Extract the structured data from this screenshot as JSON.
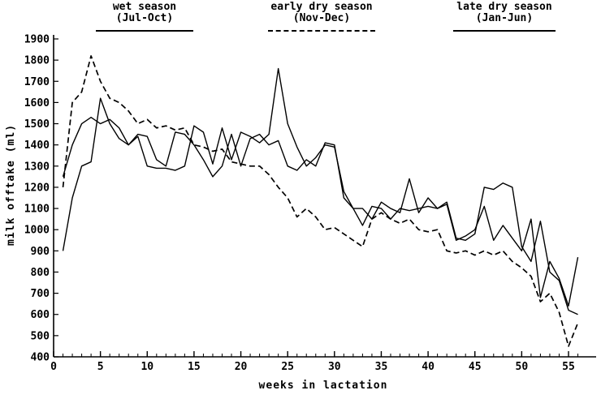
{
  "chart": {
    "xlabel": "weeks in lactation",
    "ylabel": "milk offtake (ml)",
    "legend": [
      {
        "label_line1": "wet season",
        "label_line2": "(Jul-Oct)",
        "style": "solid"
      },
      {
        "label_line1": "early dry season",
        "label_line2": "(Nov-Dec)",
        "style": "dashed"
      },
      {
        "label_line1": "late dry season",
        "label_line2": "(Jan-Jun)",
        "style": "solid"
      }
    ],
    "colors": {
      "line": "#000000",
      "background": "#ffffff"
    }
  },
  "chart_data": {
    "type": "line",
    "title": "",
    "xlabel": "weeks in lactation",
    "ylabel": "milk offtake (ml)",
    "xlim": [
      0,
      56
    ],
    "ylim": [
      400,
      1900
    ],
    "x_ticks": [
      0,
      5,
      10,
      15,
      20,
      25,
      30,
      35,
      40,
      45,
      50,
      55
    ],
    "y_ticks": [
      400,
      500,
      600,
      700,
      800,
      900,
      1000,
      1100,
      1200,
      1300,
      1400,
      1500,
      1600,
      1700,
      1800,
      1900
    ],
    "x_minor_step": 1,
    "grid": false,
    "legend_position": "top",
    "x": [
      1,
      2,
      3,
      4,
      5,
      6,
      7,
      8,
      9,
      10,
      11,
      12,
      13,
      14,
      15,
      16,
      17,
      18,
      19,
      20,
      21,
      22,
      23,
      24,
      25,
      26,
      27,
      28,
      29,
      30,
      31,
      32,
      33,
      34,
      35,
      36,
      37,
      38,
      39,
      40,
      41,
      42,
      43,
      44,
      45,
      46,
      47,
      48,
      49,
      50,
      51,
      52,
      53,
      54,
      55,
      56
    ],
    "series": [
      {
        "name": "wet season (Jul-Oct)",
        "style": "solid",
        "values": [
          900,
          1150,
          1300,
          1320,
          1620,
          1500,
          1430,
          1400,
          1440,
          1300,
          1290,
          1290,
          1280,
          1300,
          1490,
          1460,
          1310,
          1480,
          1330,
          1460,
          1440,
          1410,
          1450,
          1760,
          1500,
          1390,
          1300,
          1340,
          1400,
          1390,
          1180,
          1100,
          1020,
          1110,
          1100,
          1050,
          1100,
          1090,
          1100,
          1110,
          1100,
          1120,
          950,
          970,
          1000,
          1110,
          950,
          1020,
          960,
          900,
          1050,
          680,
          850,
          770,
          640,
          870
        ]
      },
      {
        "name": "early dry season (Nov-Dec)",
        "style": "dashed",
        "values": [
          1200,
          1600,
          1650,
          1820,
          1700,
          1620,
          1600,
          1560,
          1500,
          1520,
          1480,
          1490,
          1470,
          1480,
          1400,
          1390,
          1370,
          1380,
          1320,
          1310,
          1300,
          1300,
          1260,
          1200,
          1150,
          1060,
          1100,
          1060,
          1000,
          1010,
          980,
          950,
          920,
          1050,
          1080,
          1050,
          1030,
          1050,
          1000,
          990,
          1000,
          900,
          890,
          900,
          880,
          900,
          880,
          900,
          850,
          820,
          780,
          660,
          700,
          610,
          450,
          560
        ]
      },
      {
        "name": "late dry season (Jan-Jun)",
        "style": "solid",
        "values": [
          1250,
          1400,
          1500,
          1530,
          1500,
          1520,
          1480,
          1400,
          1450,
          1440,
          1330,
          1300,
          1460,
          1450,
          1400,
          1330,
          1250,
          1300,
          1450,
          1300,
          1430,
          1450,
          1400,
          1420,
          1300,
          1280,
          1330,
          1300,
          1410,
          1400,
          1150,
          1100,
          1100,
          1050,
          1130,
          1100,
          1080,
          1240,
          1080,
          1150,
          1100,
          1130,
          960,
          950,
          980,
          1200,
          1190,
          1220,
          1200,
          920,
          850,
          1040,
          800,
          760,
          620,
          600
        ]
      }
    ]
  }
}
